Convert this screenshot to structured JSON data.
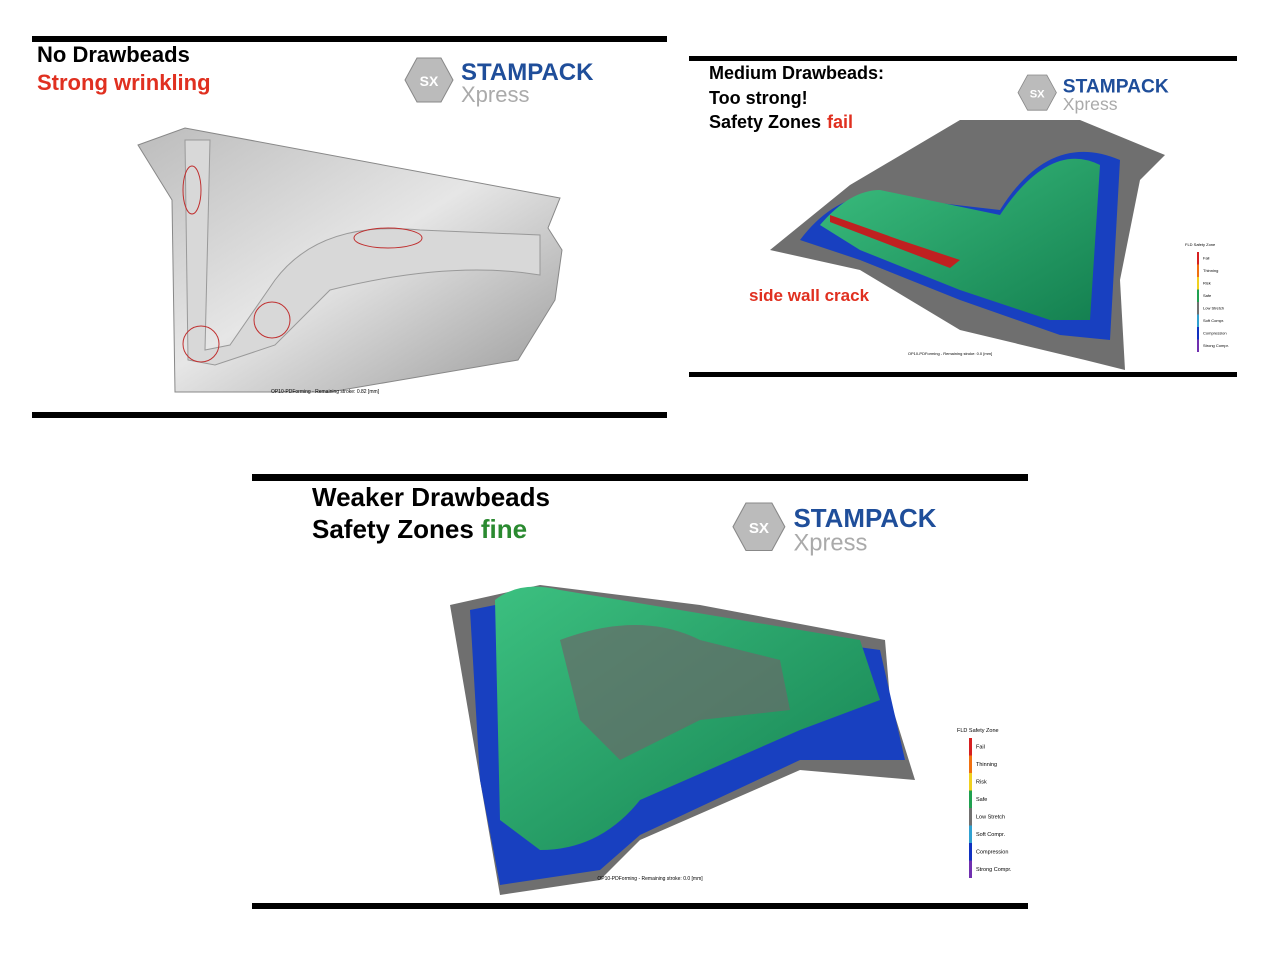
{
  "panels": [
    {
      "title": [
        "No Drawbeads",
        "Strong wrinkling"
      ],
      "logo": {
        "badge": "SX",
        "brand": "STAMPACK",
        "sub": "Xpress"
      },
      "caption": "OP10-PDForming - Remaining stroke: 0.82 [mm]"
    },
    {
      "title": [
        "Medium Drawbeads:",
        "Too strong!"
      ],
      "status_label": "Safety Zones",
      "status": "fail",
      "annotation": "side wall crack",
      "logo": {
        "badge": "SX",
        "brand": "STAMPACK",
        "sub": "Xpress"
      },
      "caption": "OP10-PDForming - Remaining stroke: 0.0 [mm]",
      "legend": {
        "title": "FLD Safety Zone",
        "entries": [
          {
            "name": "Fail",
            "color": "#d62020"
          },
          {
            "name": "Thinning",
            "color": "#f07010"
          },
          {
            "name": "Risk",
            "color": "#f0d020"
          },
          {
            "name": "Safe",
            "color": "#20a050"
          },
          {
            "name": "Low Stretch",
            "color": "#707070"
          },
          {
            "name": "Soft Compr.",
            "color": "#30a0d0"
          },
          {
            "name": "Compression",
            "color": "#1030c0"
          },
          {
            "name": "Strong Compr.",
            "color": "#7030b0"
          }
        ]
      }
    },
    {
      "title": [
        "Weaker Drawbeads"
      ],
      "status_label": "Safety Zones",
      "status": "fine",
      "logo": {
        "badge": "SX",
        "brand": "STAMPACK",
        "sub": "Xpress"
      },
      "caption": "OP10-PDForming - Remaining stroke: 0.0 [mm]",
      "legend": {
        "title": "FLD Safety Zone",
        "entries": [
          {
            "name": "Fail",
            "color": "#d62020"
          },
          {
            "name": "Thinning",
            "color": "#f07010"
          },
          {
            "name": "Risk",
            "color": "#f0d020"
          },
          {
            "name": "Safe",
            "color": "#20a050"
          },
          {
            "name": "Low Stretch",
            "color": "#707070"
          },
          {
            "name": "Soft Compr.",
            "color": "#30a0d0"
          },
          {
            "name": "Compression",
            "color": "#1030c0"
          },
          {
            "name": "Strong Compr.",
            "color": "#7030b0"
          }
        ]
      }
    }
  ]
}
